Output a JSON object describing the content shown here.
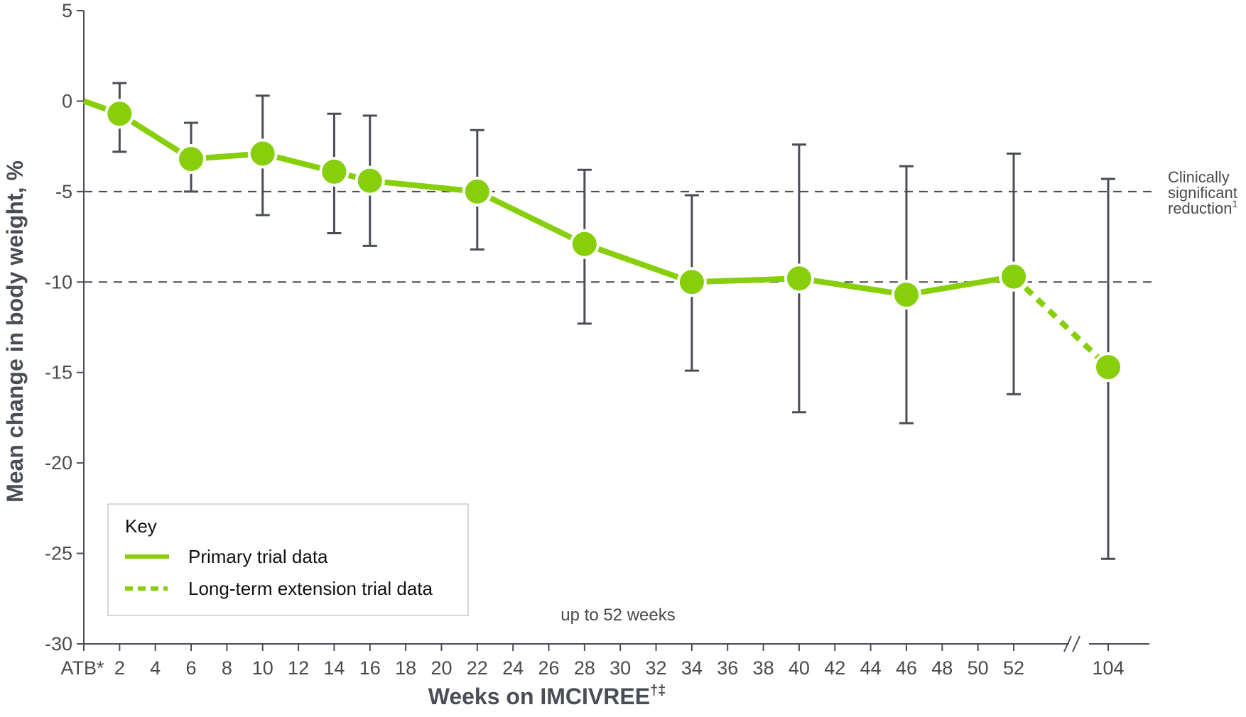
{
  "chart_data": {
    "type": "line",
    "ylabel": "Mean change in body weight, %",
    "xlabel": "Weeks on IMCIVREE",
    "xlabel_superscript": "†‡",
    "ylim": [
      -30,
      5
    ],
    "yticks": [
      "5",
      "0",
      "-5",
      "-10",
      "-15",
      "-20",
      "-25",
      "-30"
    ],
    "xticks": [
      "ATB*",
      "2",
      "4",
      "6",
      "8",
      "10",
      "12",
      "14",
      "16",
      "18",
      "20",
      "22",
      "24",
      "26",
      "28",
      "30",
      "32",
      "34",
      "36",
      "38",
      "40",
      "42",
      "44",
      "46",
      "48",
      "50",
      "52",
      "104"
    ],
    "axis_break_between": [
      "52",
      "104"
    ],
    "reference_lines": [
      {
        "y": -5,
        "style": "dashed"
      },
      {
        "y": -10,
        "style": "dashed"
      }
    ],
    "reference_label_lines": [
      "Clinically",
      "significant",
      "reduction"
    ],
    "reference_label_superscript": "1",
    "annotation": "up to 52 weeks",
    "series": [
      {
        "name": "Primary trial data",
        "style": "solid",
        "color": "#86cf0a",
        "x": [
          "ATB*",
          "2",
          "6",
          "10",
          "14",
          "16",
          "22",
          "28",
          "34",
          "40",
          "46",
          "52"
        ],
        "y": [
          0,
          -0.7,
          -3.2,
          -2.9,
          -3.9,
          -4.4,
          -5.0,
          -7.9,
          -10.0,
          -9.8,
          -10.7,
          -9.7
        ],
        "error_low": [
          null,
          -2.8,
          -5.0,
          -6.3,
          -7.3,
          -8.0,
          -8.2,
          -12.3,
          -14.9,
          -17.2,
          -17.8,
          -16.2
        ],
        "error_high": [
          null,
          1.0,
          -1.2,
          0.3,
          -0.7,
          -0.8,
          -1.6,
          -3.8,
          -5.2,
          -2.4,
          -3.6,
          -2.9
        ],
        "markers": [
          false,
          true,
          true,
          true,
          true,
          true,
          true,
          true,
          true,
          true,
          true,
          true
        ]
      },
      {
        "name": "Long-term extension trial data",
        "style": "dashed",
        "color": "#86cf0a",
        "x": [
          "52",
          "104"
        ],
        "y": [
          -9.7,
          -14.7
        ],
        "error_low": [
          null,
          -25.3
        ],
        "error_high": [
          null,
          -4.3
        ],
        "markers": [
          false,
          true
        ]
      }
    ],
    "legend": {
      "title": "Key",
      "position": "bottom-left",
      "items": [
        {
          "label": "Primary trial data",
          "style": "solid"
        },
        {
          "label": "Long-term extension trial data",
          "style": "dashed"
        }
      ]
    },
    "colors": {
      "line": "#86cf0a",
      "marker_stroke": "#ffffff",
      "error_bar": "#4a4d55",
      "axis": "#4a4d55",
      "reference": "#4a4a4a"
    }
  }
}
